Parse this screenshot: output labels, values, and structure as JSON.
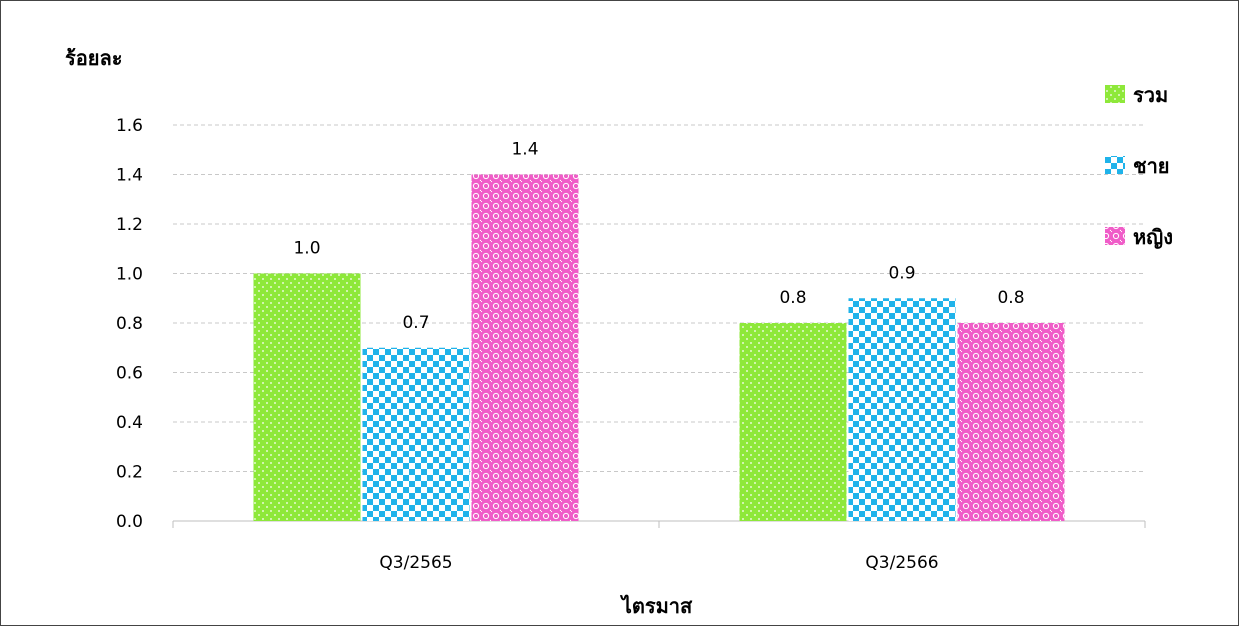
{
  "chart_data": {
    "type": "bar",
    "title": "",
    "xlabel": "ไตรมาส",
    "ylabel": "ร้อยละ",
    "categories": [
      "Q3/2565",
      "Q3/2566"
    ],
    "series": [
      {
        "name": "รวม",
        "values": [
          1.0,
          0.8
        ],
        "value_labels": [
          "1.0",
          "0.8"
        ],
        "color": "#8ee83a",
        "pattern": "dots"
      },
      {
        "name": "ชาย",
        "values": [
          0.7,
          0.9
        ],
        "value_labels": [
          "0.7",
          "0.9"
        ],
        "color": "#1fb3ea",
        "pattern": "checker"
      },
      {
        "name": "หญิง",
        "values": [
          1.4,
          0.8
        ],
        "value_labels": [
          "1.4",
          "0.8"
        ],
        "color": "#f05cc8",
        "pattern": "weave"
      }
    ],
    "ylim": [
      0,
      1.6
    ],
    "yticks": [
      "0.0",
      "0.2",
      "0.4",
      "0.6",
      "0.8",
      "1.0",
      "1.2",
      "1.4",
      "1.6"
    ],
    "grid": true,
    "legend": "right"
  }
}
